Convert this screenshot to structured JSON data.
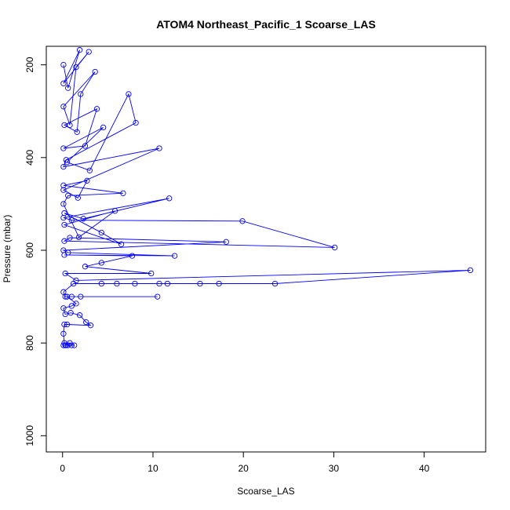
{
  "chart_data": {
    "type": "line",
    "title": "ATOM4 Northeast_Pacific_1 Scoarse_LAS",
    "xlabel": "Scoarse_LAS",
    "ylabel": "Pressure (mbar)",
    "xlim": [
      -1.8,
      46.8
    ],
    "ylim": [
      1035,
      160
    ],
    "y_reversed": true,
    "x_ticks": [
      0,
      10,
      20,
      30,
      40
    ],
    "y_ticks": [
      200,
      400,
      600,
      800,
      1000
    ],
    "grid": false,
    "legend": "none",
    "series": [
      {
        "color": "#0000ff",
        "points": [
          [
            0.1,
            805
          ],
          [
            0.3,
            805
          ],
          [
            0.6,
            805
          ],
          [
            1.0,
            805
          ],
          [
            1.3,
            805
          ],
          [
            0.8,
            800
          ],
          [
            0.4,
            805
          ],
          [
            0.2,
            800
          ],
          [
            0.1,
            780
          ],
          [
            0.2,
            760
          ],
          [
            0.5,
            760
          ],
          [
            3.1,
            762
          ],
          [
            2.6,
            755
          ],
          [
            1.9,
            740
          ],
          [
            0.9,
            735
          ],
          [
            0.3,
            738
          ],
          [
            0.1,
            725
          ],
          [
            1.0,
            720
          ],
          [
            1.5,
            715
          ],
          [
            0.5,
            700
          ],
          [
            10.5,
            700
          ],
          [
            2.0,
            700
          ],
          [
            1.0,
            700
          ],
          [
            0.3,
            700
          ],
          [
            0.1,
            690
          ],
          [
            1.2,
            672
          ],
          [
            4.3,
            672
          ],
          [
            6.0,
            672
          ],
          [
            8.0,
            672
          ],
          [
            10.7,
            672
          ],
          [
            11.6,
            672
          ],
          [
            15.2,
            672
          ],
          [
            17.3,
            672
          ],
          [
            23.5,
            672
          ],
          [
            45.1,
            643
          ],
          [
            1.5,
            665
          ],
          [
            0.3,
            650
          ],
          [
            9.8,
            650
          ],
          [
            2.5,
            635
          ],
          [
            4.3,
            627
          ],
          [
            7.7,
            612
          ],
          [
            0.2,
            610
          ],
          [
            12.4,
            612
          ],
          [
            0.6,
            605
          ],
          [
            0.1,
            600
          ],
          [
            18.1,
            582
          ],
          [
            0.8,
            573
          ],
          [
            0.2,
            580
          ],
          [
            30.1,
            594
          ],
          [
            19.9,
            537
          ],
          [
            1.0,
            535
          ],
          [
            0.1,
            530
          ],
          [
            11.8,
            488
          ],
          [
            2.3,
            532
          ],
          [
            0.2,
            520
          ],
          [
            4.3,
            562
          ],
          [
            6.5,
            587
          ],
          [
            0.2,
            545
          ],
          [
            5.8,
            515
          ],
          [
            1.8,
            572
          ],
          [
            0.1,
            500
          ],
          [
            0.6,
            482
          ],
          [
            6.7,
            477
          ],
          [
            0.1,
            460
          ],
          [
            2.7,
            450
          ],
          [
            1.7,
            487
          ],
          [
            0.1,
            470
          ],
          [
            10.7,
            380
          ],
          [
            0.1,
            420
          ],
          [
            0.4,
            405
          ],
          [
            8.1,
            325
          ],
          [
            7.3,
            263
          ],
          [
            3.0,
            428
          ],
          [
            0.5,
            410
          ],
          [
            4.5,
            335
          ],
          [
            0.1,
            380
          ],
          [
            2.5,
            375
          ],
          [
            3.8,
            295
          ],
          [
            0.2,
            330
          ],
          [
            1.6,
            345
          ],
          [
            2.0,
            263
          ],
          [
            3.6,
            215
          ],
          [
            0.1,
            290
          ],
          [
            0.8,
            330
          ],
          [
            1.5,
            205
          ],
          [
            2.9,
            172
          ],
          [
            0.1,
            240
          ],
          [
            1.9,
            168
          ],
          [
            0.6,
            250
          ],
          [
            0.1,
            200
          ]
        ]
      }
    ]
  }
}
